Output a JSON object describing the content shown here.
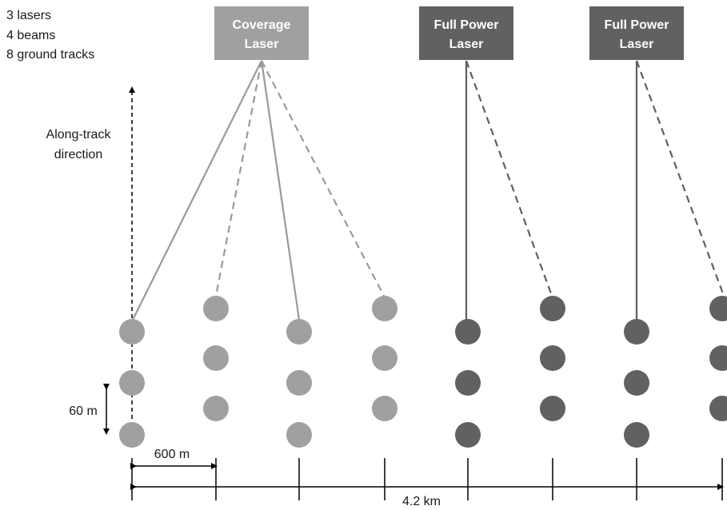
{
  "summary": [
    "3 lasers",
    "4 beams",
    "8 ground tracks"
  ],
  "lasers": [
    {
      "label_line1": "Coverage",
      "label_line2": "Laser",
      "color": "#a0a0a0"
    },
    {
      "label_line1": "Full Power",
      "label_line2": "Laser",
      "color": "#616161"
    },
    {
      "label_line1": "Full Power",
      "label_line2": "Laser",
      "color": "#616161"
    }
  ],
  "along_track": {
    "line1": "Along-track",
    "line2": "direction"
  },
  "dimensions": {
    "spacing_60m": "60 m",
    "spacing_600m": "600 m",
    "total_width": "4.2 km"
  },
  "colors": {
    "coverage_spot": "#a0a0a0",
    "full_power_spot": "#616161",
    "beam_coverage": "#9a9a9a",
    "beam_full_power": "#5f5f5f",
    "axis": "#000000"
  }
}
